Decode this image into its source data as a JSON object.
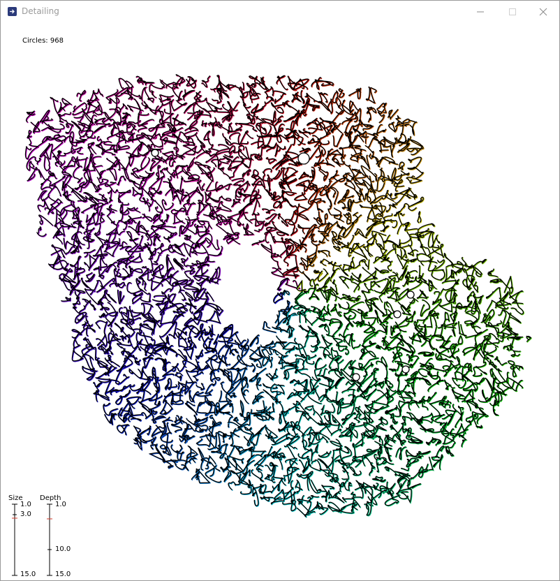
{
  "window": {
    "title": "Detailing",
    "icon": "arrow-right-icon"
  },
  "stats": {
    "circles_label": "Circles: 968"
  },
  "sliders": [
    {
      "title": "Size",
      "min_label": "1.0",
      "max_label": "15.0",
      "value_label": "3.0",
      "min": 1.0,
      "max": 15.0,
      "value": 3.0
    },
    {
      "title": "Depth",
      "min_label": "1.0",
      "max_label": "15.0",
      "value_label": "10.0",
      "min": 1.0,
      "max": 15.0,
      "value": 10.0,
      "marker": 2.0
    }
  ],
  "colors": {
    "marker": "#d23a2a",
    "line": "#000000"
  }
}
